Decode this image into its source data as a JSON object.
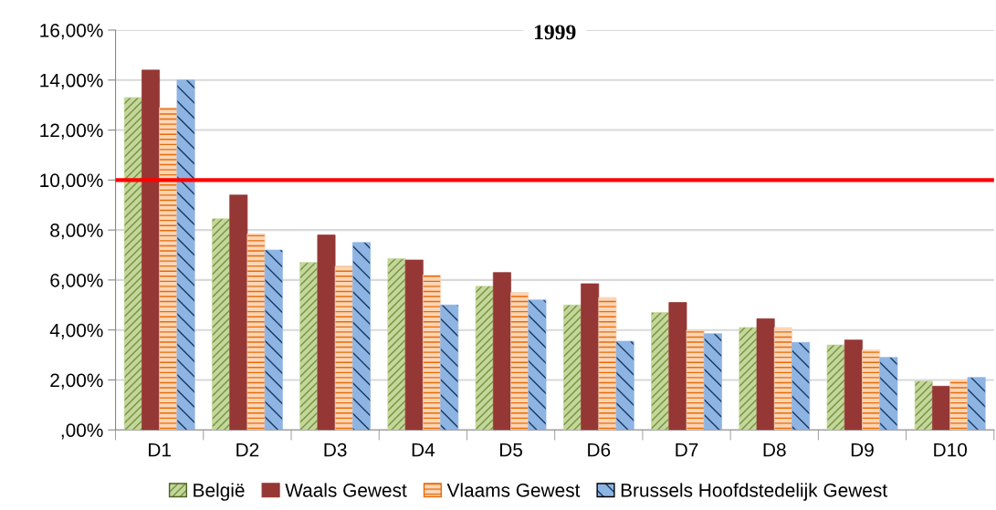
{
  "chart_data": {
    "type": "bar",
    "title": "1999",
    "categories": [
      "D1",
      "D2",
      "D3",
      "D4",
      "D5",
      "D6",
      "D7",
      "D8",
      "D9",
      "D10"
    ],
    "series": [
      {
        "name": "België",
        "color": "#c3d69b",
        "values": [
          13.3,
          8.45,
          6.7,
          6.85,
          5.75,
          5.0,
          4.7,
          4.1,
          3.4,
          1.95
        ]
      },
      {
        "name": "Waals Gewest",
        "color": "#953735",
        "values": [
          14.4,
          9.4,
          7.8,
          6.8,
          6.3,
          5.85,
          5.1,
          4.45,
          3.6,
          1.75
        ]
      },
      {
        "name": "Vlaams Gewest",
        "color": "#fcd5b5",
        "values": [
          12.9,
          7.85,
          6.55,
          6.2,
          5.5,
          5.3,
          4.0,
          4.1,
          3.2,
          2.0
        ]
      },
      {
        "name": "Brussels Hoofdstedelijk Gewest",
        "color": "#8eb4e3",
        "values": [
          14.0,
          7.2,
          7.5,
          5.0,
          5.2,
          3.55,
          3.85,
          3.5,
          2.9,
          2.1
        ]
      }
    ],
    "ylim": [
      0,
      16
    ],
    "yticks": [
      {
        "value": 0,
        "label": ",00%"
      },
      {
        "value": 2,
        "label": "2,00%"
      },
      {
        "value": 4,
        "label": "4,00%"
      },
      {
        "value": 6,
        "label": "6,00%"
      },
      {
        "value": 8,
        "label": "8,00%"
      },
      {
        "value": 10,
        "label": "10,00%"
      },
      {
        "value": 12,
        "label": "12,00%"
      },
      {
        "value": 14,
        "label": "14,00%"
      },
      {
        "value": 16,
        "label": "16,00%"
      }
    ],
    "ref_lines": [
      {
        "axis": "y",
        "value": 10,
        "color": "#ff0000"
      }
    ],
    "grid": "y",
    "legend": "bottom"
  }
}
